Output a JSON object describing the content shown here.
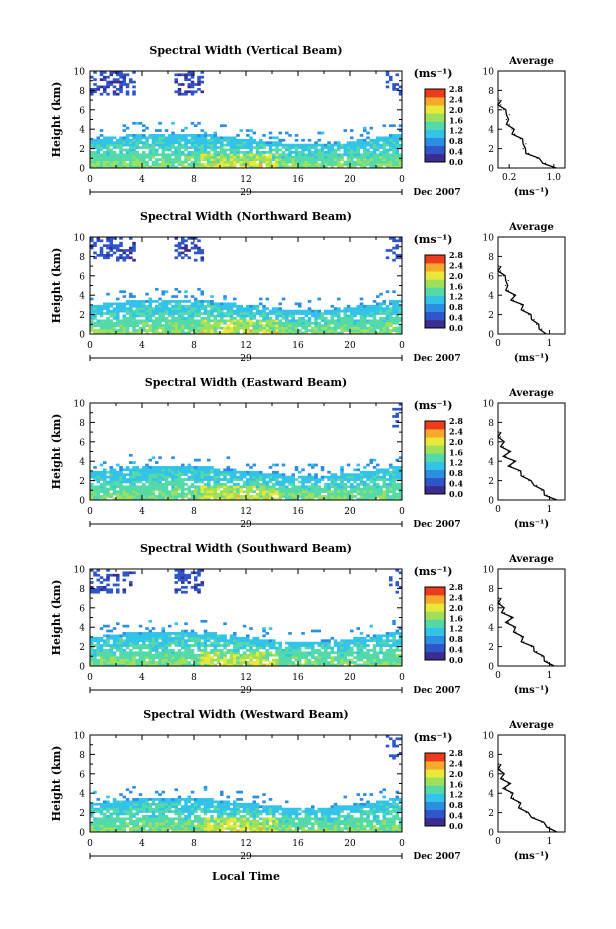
{
  "figure": {
    "xlabel_bottom": "Local Time",
    "colorbar_unit": "(ms⁻¹)",
    "colorbar_ticks": [
      "0.0",
      "0.4",
      "0.8",
      "1.2",
      "1.6",
      "2.0",
      "2.4",
      "2.8"
    ],
    "colorbar_colors": [
      "#3a2d8f",
      "#2f56c9",
      "#2b8ee0",
      "#33c3e8",
      "#54d9a8",
      "#9ee05a",
      "#e8e83a",
      "#f7a92b",
      "#ee3b1e"
    ],
    "date_label": "Dec 2007",
    "day_label": "29",
    "avg_title": "Average",
    "avg_xlabel": "(ms⁻¹)"
  },
  "chart_data": [
    {
      "type": "heatmap",
      "title": "Spectral Width (Vertical Beam)",
      "xlabel": "Local Time",
      "ylabel": "Height (km)",
      "xlim": [
        0,
        24
      ],
      "ylim": [
        0,
        10
      ],
      "xticks": [
        "0",
        "4",
        "8",
        "12",
        "16",
        "20",
        "0"
      ],
      "yticks": [
        "0",
        "2",
        "4",
        "6",
        "8",
        "10"
      ],
      "colorbar_range": [
        0,
        2.8
      ],
      "profile": {
        "title": "Average",
        "xticks": [
          "0.2",
          "1.0"
        ],
        "xlim": [
          0,
          1.2
        ],
        "heights": [
          0,
          0.5,
          1,
          1.5,
          2,
          2.5,
          3,
          3.5,
          4,
          4.5,
          5,
          5.5,
          6,
          6.5,
          7
        ],
        "values": [
          1.0,
          0.85,
          0.7,
          0.55,
          0.45,
          0.5,
          0.4,
          0.3,
          0.25,
          0.2,
          0.15,
          0.2,
          0.1,
          0.05,
          0.02
        ]
      }
    },
    {
      "type": "heatmap",
      "title": "Spectral Width (Northward Beam)",
      "xlabel": "Local Time",
      "ylabel": "Height (km)",
      "xlim": [
        0,
        24
      ],
      "ylim": [
        0,
        10
      ],
      "xticks": [
        "0",
        "4",
        "8",
        "12",
        "16",
        "20",
        "0"
      ],
      "yticks": [
        "0",
        "2",
        "4",
        "6",
        "8",
        "10"
      ],
      "colorbar_range": [
        0,
        2.8
      ],
      "profile": {
        "title": "Average",
        "xticks": [
          "0",
          "1"
        ],
        "xlim": [
          0,
          1.3
        ],
        "heights": [
          0,
          0.5,
          1,
          1.5,
          2,
          2.5,
          3,
          3.5,
          4,
          4.5,
          5,
          5.5,
          6,
          6.5,
          7
        ],
        "values": [
          0.9,
          0.85,
          0.75,
          0.7,
          0.6,
          0.5,
          0.45,
          0.3,
          0.3,
          0.2,
          0.15,
          0.2,
          0.1,
          0.05,
          0.02
        ]
      }
    },
    {
      "type": "heatmap",
      "title": "Spectral Width (Eastward Beam)",
      "xlabel": "Local Time",
      "ylabel": "Height (km)",
      "xlim": [
        0,
        24
      ],
      "ylim": [
        0,
        10
      ],
      "xticks": [
        "0",
        "4",
        "8",
        "12",
        "16",
        "20",
        "0"
      ],
      "yticks": [
        "0",
        "2",
        "4",
        "6",
        "8",
        "10"
      ],
      "colorbar_range": [
        0,
        2.8
      ],
      "profile": {
        "title": "Average",
        "xticks": [
          "0",
          "1"
        ],
        "xlim": [
          0,
          1.3
        ],
        "heights": [
          0,
          0.5,
          1,
          1.5,
          2,
          2.5,
          3,
          3.5,
          4,
          4.5,
          5,
          5.5,
          6,
          6.5,
          7
        ],
        "values": [
          1.1,
          0.95,
          0.85,
          0.75,
          0.6,
          0.5,
          0.4,
          0.25,
          0.3,
          0.15,
          0.2,
          0.1,
          0.08,
          0.05,
          0.02
        ]
      }
    },
    {
      "type": "heatmap",
      "title": "Spectral Width (Southward Beam)",
      "xlabel": "Local Time",
      "ylabel": "Height (km)",
      "xlim": [
        0,
        24
      ],
      "ylim": [
        0,
        10
      ],
      "xticks": [
        "0",
        "4",
        "8",
        "12",
        "16",
        "20",
        "0"
      ],
      "yticks": [
        "0",
        "2",
        "4",
        "6",
        "8",
        "10"
      ],
      "colorbar_range": [
        0,
        2.8
      ],
      "profile": {
        "title": "Average",
        "xticks": [
          "0",
          "1"
        ],
        "xlim": [
          0,
          1.3
        ],
        "heights": [
          0,
          0.5,
          1,
          1.5,
          2,
          2.5,
          3,
          3.5,
          4,
          4.5,
          5,
          5.5,
          6,
          6.5,
          7
        ],
        "values": [
          1.05,
          0.95,
          0.85,
          0.75,
          0.65,
          0.5,
          0.45,
          0.35,
          0.3,
          0.2,
          0.25,
          0.12,
          0.08,
          0.04,
          0.02
        ]
      }
    },
    {
      "type": "heatmap",
      "title": "Spectral Width (Westward Beam)",
      "xlabel": "Local Time",
      "ylabel": "Height (km)",
      "xlim": [
        0,
        24
      ],
      "ylim": [
        0,
        10
      ],
      "xticks": [
        "0",
        "4",
        "8",
        "12",
        "16",
        "20",
        "0"
      ],
      "yticks": [
        "0",
        "2",
        "4",
        "6",
        "8",
        "10"
      ],
      "colorbar_range": [
        0,
        2.8
      ],
      "profile": {
        "title": "Average",
        "xticks": [
          "0",
          "1"
        ],
        "xlim": [
          0,
          1.3
        ],
        "heights": [
          0,
          0.5,
          1,
          1.5,
          2,
          2.5,
          3,
          3.5,
          4,
          4.5,
          5,
          5.5,
          6,
          6.5,
          7
        ],
        "values": [
          1.1,
          1.0,
          0.85,
          0.7,
          0.55,
          0.45,
          0.4,
          0.3,
          0.25,
          0.15,
          0.2,
          0.1,
          0.08,
          0.04,
          0.02
        ]
      }
    }
  ]
}
